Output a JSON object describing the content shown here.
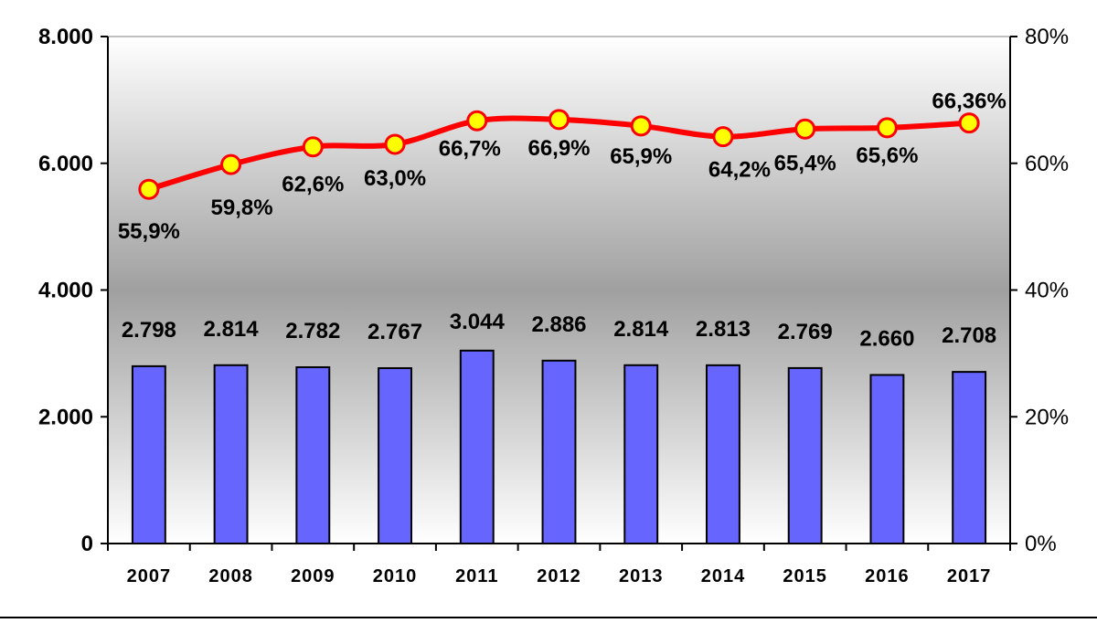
{
  "chart_data": {
    "type": "bar+line",
    "categories": [
      "2007",
      "2008",
      "2009",
      "2010",
      "2011",
      "2012",
      "2013",
      "2014",
      "2015",
      "2016",
      "2017"
    ],
    "bar_series": {
      "values": [
        2798,
        2814,
        2782,
        2767,
        3044,
        2886,
        2814,
        2813,
        2769,
        2660,
        2708
      ],
      "labels": [
        "2.798",
        "2.814",
        "2.782",
        "2.767",
        "3.044",
        "2.886",
        "2.814",
        "2.813",
        "2.769",
        "2.660",
        "2.708"
      ],
      "color": "#6666ff",
      "axis": "left"
    },
    "line_series": {
      "values": [
        55.9,
        59.8,
        62.6,
        63.0,
        66.7,
        66.9,
        65.9,
        64.2,
        65.4,
        65.6,
        66.36
      ],
      "labels": [
        "55,9%",
        "59,8%",
        "62,6%",
        "63,0%",
        "66,7%",
        "66,9%",
        "65,9%",
        "64,2%",
        "65,4%",
        "65,6%",
        "66,36%"
      ],
      "line_color": "#ff0000",
      "marker_color": "#ffff00",
      "axis": "right"
    },
    "left_axis": {
      "ylim": [
        0,
        8000
      ],
      "ticks": [
        0,
        2000,
        4000,
        6000,
        8000
      ],
      "tick_labels": [
        "0",
        "2.000",
        "4.000",
        "6.000",
        "8.000"
      ]
    },
    "right_axis": {
      "ylim": [
        0,
        80
      ],
      "ticks": [
        0,
        20,
        40,
        60,
        80
      ],
      "tick_labels": [
        "0%",
        "20%",
        "40%",
        "60%",
        "80%"
      ]
    },
    "title": "",
    "xlabel": "",
    "ylabel": "",
    "grid": false,
    "legend": "none",
    "background": "gradient white-grey-white"
  }
}
